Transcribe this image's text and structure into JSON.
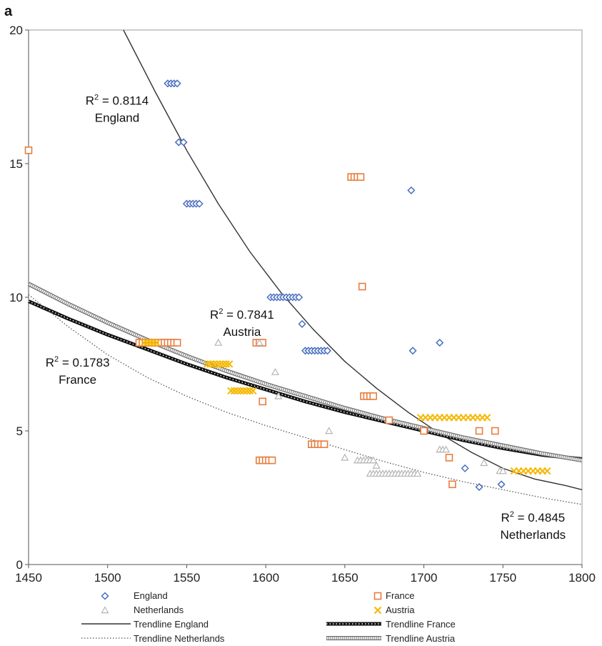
{
  "panel_label": "a",
  "chart_data": {
    "type": "scatter",
    "title": "",
    "xlabel": "",
    "ylabel": "",
    "xlim": [
      1450,
      1800
    ],
    "ylim": [
      0,
      20
    ],
    "x_ticks": [
      1450,
      1500,
      1550,
      1600,
      1650,
      1700,
      1750,
      1800
    ],
    "y_ticks": [
      0,
      5,
      10,
      15,
      20
    ],
    "grid": false,
    "legend_position": "bottom",
    "series": [
      {
        "name": "England",
        "marker": "diamond",
        "color": "#4a6fc1",
        "points": [
          [
            1538,
            18
          ],
          [
            1540,
            18
          ],
          [
            1542,
            18
          ],
          [
            1544,
            18
          ],
          [
            1545,
            15.8
          ],
          [
            1548,
            15.8
          ],
          [
            1550,
            13.5
          ],
          [
            1552,
            13.5
          ],
          [
            1554,
            13.5
          ],
          [
            1556,
            13.5
          ],
          [
            1558,
            13.5
          ],
          [
            1603,
            10
          ],
          [
            1605,
            10
          ],
          [
            1607,
            10
          ],
          [
            1609,
            10
          ],
          [
            1611,
            10
          ],
          [
            1613,
            10
          ],
          [
            1615,
            10
          ],
          [
            1617,
            10
          ],
          [
            1619,
            10
          ],
          [
            1621,
            10
          ],
          [
            1623,
            9
          ],
          [
            1625,
            8
          ],
          [
            1627,
            8
          ],
          [
            1629,
            8
          ],
          [
            1631,
            8
          ],
          [
            1633,
            8
          ],
          [
            1635,
            8
          ],
          [
            1637,
            8
          ],
          [
            1639,
            8
          ],
          [
            1692,
            14
          ],
          [
            1693,
            8
          ],
          [
            1710,
            8.3
          ],
          [
            1726,
            3.6
          ],
          [
            1735,
            2.9
          ],
          [
            1749,
            3
          ]
        ]
      },
      {
        "name": "France",
        "marker": "square",
        "color": "#e87d3e",
        "points": [
          [
            1450,
            15.5
          ],
          [
            1520,
            8.3
          ],
          [
            1522,
            8.3
          ],
          [
            1524,
            8.3
          ],
          [
            1526,
            8.3
          ],
          [
            1528,
            8.3
          ],
          [
            1530,
            8.3
          ],
          [
            1532,
            8.3
          ],
          [
            1534,
            8.3
          ],
          [
            1536,
            8.3
          ],
          [
            1538,
            8.3
          ],
          [
            1540,
            8.3
          ],
          [
            1542,
            8.3
          ],
          [
            1544,
            8.3
          ],
          [
            1594,
            8.3
          ],
          [
            1596,
            8.3
          ],
          [
            1598,
            8.3
          ],
          [
            1598,
            6.1
          ],
          [
            1596,
            3.9
          ],
          [
            1598,
            3.9
          ],
          [
            1600,
            3.9
          ],
          [
            1602,
            3.9
          ],
          [
            1604,
            3.9
          ],
          [
            1629,
            4.5
          ],
          [
            1631,
            4.5
          ],
          [
            1633,
            4.5
          ],
          [
            1635,
            4.5
          ],
          [
            1637,
            4.5
          ],
          [
            1654,
            14.5
          ],
          [
            1656,
            14.5
          ],
          [
            1658,
            14.5
          ],
          [
            1660,
            14.5
          ],
          [
            1661,
            10.4
          ],
          [
            1662,
            6.3
          ],
          [
            1664,
            6.3
          ],
          [
            1666,
            6.3
          ],
          [
            1668,
            6.3
          ],
          [
            1678,
            5.4
          ],
          [
            1700,
            5
          ],
          [
            1716,
            4
          ],
          [
            1718,
            3
          ],
          [
            1735,
            5
          ],
          [
            1745,
            5
          ]
        ]
      },
      {
        "name": "Netherlands",
        "marker": "triangle",
        "color": "#b5b5b5",
        "points": [
          [
            1570,
            8.3
          ],
          [
            1596,
            8.3
          ],
          [
            1606,
            7.2
          ],
          [
            1608,
            6.3
          ],
          [
            1640,
            5
          ],
          [
            1650,
            4
          ],
          [
            1658,
            3.9
          ],
          [
            1660,
            3.9
          ],
          [
            1662,
            3.9
          ],
          [
            1664,
            3.9
          ],
          [
            1666,
            3.9
          ],
          [
            1668,
            3.9
          ],
          [
            1670,
            3.7
          ],
          [
            1666,
            3.4
          ],
          [
            1668,
            3.4
          ],
          [
            1670,
            3.4
          ],
          [
            1672,
            3.4
          ],
          [
            1674,
            3.4
          ],
          [
            1676,
            3.4
          ],
          [
            1678,
            3.4
          ],
          [
            1680,
            3.4
          ],
          [
            1682,
            3.4
          ],
          [
            1684,
            3.4
          ],
          [
            1686,
            3.4
          ],
          [
            1688,
            3.4
          ],
          [
            1690,
            3.4
          ],
          [
            1692,
            3.4
          ],
          [
            1694,
            3.4
          ],
          [
            1696,
            3.4
          ],
          [
            1710,
            4.3
          ],
          [
            1712,
            4.3
          ],
          [
            1714,
            4.3
          ],
          [
            1738,
            3.8
          ],
          [
            1748,
            3.5
          ],
          [
            1750,
            3.5
          ]
        ]
      },
      {
        "name": "Austria",
        "marker": "x",
        "color": "#f5b800",
        "points": [
          [
            1523,
            8.3
          ],
          [
            1525,
            8.3
          ],
          [
            1527,
            8.3
          ],
          [
            1529,
            8.3
          ],
          [
            1531,
            8.3
          ],
          [
            1563,
            7.5
          ],
          [
            1565,
            7.5
          ],
          [
            1567,
            7.5
          ],
          [
            1569,
            7.5
          ],
          [
            1571,
            7.5
          ],
          [
            1573,
            7.5
          ],
          [
            1575,
            7.5
          ],
          [
            1577,
            7.5
          ],
          [
            1578,
            6.5
          ],
          [
            1580,
            6.5
          ],
          [
            1582,
            6.5
          ],
          [
            1584,
            6.5
          ],
          [
            1586,
            6.5
          ],
          [
            1588,
            6.5
          ],
          [
            1590,
            6.5
          ],
          [
            1592,
            6.5
          ],
          [
            1698,
            5.5
          ],
          [
            1701,
            5.5
          ],
          [
            1704,
            5.5
          ],
          [
            1707,
            5.5
          ],
          [
            1710,
            5.5
          ],
          [
            1713,
            5.5
          ],
          [
            1716,
            5.5
          ],
          [
            1719,
            5.5
          ],
          [
            1722,
            5.5
          ],
          [
            1725,
            5.5
          ],
          [
            1728,
            5.5
          ],
          [
            1731,
            5.5
          ],
          [
            1734,
            5.5
          ],
          [
            1737,
            5.5
          ],
          [
            1740,
            5.5
          ],
          [
            1757,
            3.5
          ],
          [
            1760,
            3.5
          ],
          [
            1763,
            3.5
          ],
          [
            1766,
            3.5
          ],
          [
            1769,
            3.5
          ],
          [
            1772,
            3.5
          ],
          [
            1775,
            3.5
          ],
          [
            1778,
            3.5
          ]
        ]
      }
    ],
    "trendlines": [
      {
        "name": "Trendline England",
        "style": "solid-thin",
        "color": "#333333",
        "points": [
          [
            1510,
            20
          ],
          [
            1530,
            17.7
          ],
          [
            1550,
            15.5
          ],
          [
            1570,
            13.5
          ],
          [
            1590,
            11.7
          ],
          [
            1610,
            10.15
          ],
          [
            1630,
            8.8
          ],
          [
            1650,
            7.6
          ],
          [
            1670,
            6.6
          ],
          [
            1690,
            5.7
          ],
          [
            1710,
            4.9
          ],
          [
            1730,
            4.2
          ],
          [
            1750,
            3.6
          ],
          [
            1770,
            3.2
          ],
          [
            1790,
            2.95
          ],
          [
            1800,
            2.8
          ]
        ]
      },
      {
        "name": "Trendline France",
        "style": "dotted-thick",
        "color": "#111111",
        "points": [
          [
            1450,
            9.85
          ],
          [
            1475,
            9.2
          ],
          [
            1500,
            8.6
          ],
          [
            1525,
            8.05
          ],
          [
            1550,
            7.5
          ],
          [
            1575,
            7.0
          ],
          [
            1600,
            6.55
          ],
          [
            1625,
            6.1
          ],
          [
            1650,
            5.7
          ],
          [
            1675,
            5.35
          ],
          [
            1700,
            5.0
          ],
          [
            1725,
            4.65
          ],
          [
            1750,
            4.35
          ],
          [
            1775,
            4.1
          ],
          [
            1800,
            3.95
          ]
        ]
      },
      {
        "name": "Trendline Netherlands",
        "style": "dotted-thin",
        "color": "#555555",
        "points": [
          [
            1450,
            10.1
          ],
          [
            1475,
            8.9
          ],
          [
            1500,
            7.85
          ],
          [
            1525,
            7.0
          ],
          [
            1550,
            6.3
          ],
          [
            1575,
            5.7
          ],
          [
            1600,
            5.2
          ],
          [
            1625,
            4.75
          ],
          [
            1650,
            4.3
          ],
          [
            1675,
            3.85
          ],
          [
            1700,
            3.45
          ],
          [
            1725,
            3.1
          ],
          [
            1750,
            2.8
          ],
          [
            1775,
            2.5
          ],
          [
            1800,
            2.25
          ]
        ]
      },
      {
        "name": "Trendline Austria",
        "style": "hatched",
        "color": "#888888",
        "points": [
          [
            1450,
            10.5
          ],
          [
            1475,
            9.75
          ],
          [
            1500,
            9.05
          ],
          [
            1525,
            8.4
          ],
          [
            1550,
            7.8
          ],
          [
            1575,
            7.25
          ],
          [
            1600,
            6.75
          ],
          [
            1625,
            6.3
          ],
          [
            1650,
            5.85
          ],
          [
            1675,
            5.45
          ],
          [
            1700,
            5.1
          ],
          [
            1725,
            4.75
          ],
          [
            1750,
            4.45
          ],
          [
            1775,
            4.15
          ],
          [
            1800,
            3.9
          ]
        ]
      }
    ],
    "annotations": [
      {
        "r2": "0.8114",
        "label": "England",
        "x": 1506,
        "y": 17.2
      },
      {
        "r2": "0.7841",
        "label": "Austria",
        "x": 1585,
        "y": 9.2
      },
      {
        "r2": "0.1783",
        "label": "France",
        "x": 1481,
        "y": 7.4
      },
      {
        "r2": "0.4845",
        "label": "Netherlands",
        "x": 1769,
        "y": 1.6
      }
    ],
    "legend": [
      {
        "label": "England",
        "kind": "marker-diamond",
        "color": "#4a6fc1"
      },
      {
        "label": "France",
        "kind": "marker-square",
        "color": "#e87d3e"
      },
      {
        "label": "Netherlands",
        "kind": "marker-triangle",
        "color": "#b5b5b5"
      },
      {
        "label": "Austria",
        "kind": "marker-x",
        "color": "#f5b800"
      },
      {
        "label": "Trendline England",
        "kind": "line-solid-thin",
        "color": "#333333"
      },
      {
        "label": "Trendline France",
        "kind": "line-dotted-thick",
        "color": "#111111"
      },
      {
        "label": "Trendline Netherlands",
        "kind": "line-dotted-thin",
        "color": "#555555"
      },
      {
        "label": "Trendline Austria",
        "kind": "line-hatched",
        "color": "#888888"
      }
    ]
  }
}
